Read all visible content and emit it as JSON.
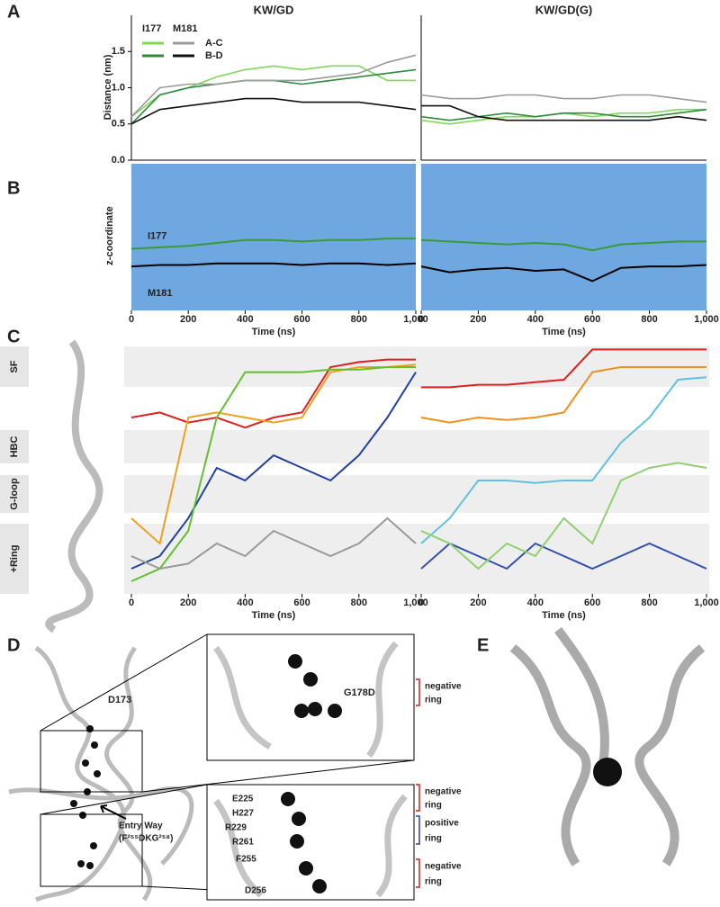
{
  "panels": {
    "A": {
      "label": "A",
      "legend": {
        "groups": [
          {
            "name": "I177",
            "colors": [
              "#7ed957",
              "#2e8b3a"
            ]
          },
          {
            "name": "M181",
            "colors": [
              "#9a9a9a",
              "#111111"
            ]
          }
        ],
        "rows": [
          "A-C",
          "B-D"
        ]
      },
      "charts": [
        {
          "type": "line",
          "title": "KW/GD",
          "title_color": "#7a55b5",
          "ylabel": "Distance (nm)",
          "x": [
            0,
            100,
            200,
            300,
            400,
            500,
            600,
            700,
            800,
            900,
            1000
          ],
          "xlim": [
            0,
            1000
          ],
          "ylim": [
            0,
            2
          ],
          "yticks": [
            {
              "value": 0,
              "label": "0.0"
            },
            0.5,
            {
              "value": 1,
              "label": "1.0"
            },
            1.5
          ],
          "series": [
            [
              [
                0.6,
                0.9,
                1.0,
                1.15,
                1.25,
                1.3,
                1.25,
                1.3,
                1.3,
                1.1,
                1.1
              ],
              [
                0.5,
                0.9,
                1.0,
                1.05,
                1.1,
                1.1,
                1.05,
                1.1,
                1.15,
                1.2,
                1.25
              ]
            ],
            [
              [
                0.6,
                1.0,
                1.05,
                1.05,
                1.1,
                1.1,
                1.1,
                1.15,
                1.2,
                1.35,
                1.45
              ],
              [
                0.5,
                0.7,
                0.75,
                0.8,
                0.85,
                0.85,
                0.8,
                0.8,
                0.8,
                0.75,
                0.7
              ]
            ]
          ]
        },
        {
          "type": "line",
          "title": "KW/GD(G)",
          "title_color": "#6cc04a",
          "x": [
            0,
            100,
            200,
            300,
            400,
            500,
            600,
            700,
            800,
            900,
            1000
          ],
          "xlim": [
            0,
            1000
          ],
          "ylim": [
            0,
            2
          ],
          "series": [
            [
              [
                0.55,
                0.5,
                0.55,
                0.6,
                0.6,
                0.65,
                0.6,
                0.65,
                0.65,
                0.7,
                0.7
              ],
              [
                0.6,
                0.55,
                0.6,
                0.65,
                0.6,
                0.65,
                0.65,
                0.6,
                0.6,
                0.65,
                0.7
              ]
            ],
            [
              [
                0.9,
                0.85,
                0.85,
                0.9,
                0.9,
                0.85,
                0.85,
                0.9,
                0.9,
                0.85,
                0.8
              ],
              [
                0.75,
                0.75,
                0.6,
                0.55,
                0.55,
                0.55,
                0.55,
                0.55,
                0.55,
                0.6,
                0.55
              ]
            ]
          ]
        }
      ]
    },
    "B": {
      "label": "B",
      "charts": [
        {
          "type": "line",
          "ylabel": "z-coordinate",
          "xlabel": "Time (ns)",
          "x": [
            0,
            100,
            200,
            300,
            400,
            500,
            600,
            700,
            800,
            900,
            1000
          ],
          "xlim": [
            0,
            1000
          ],
          "ylim": [
            0,
            1
          ],
          "xticks": [
            0,
            200,
            400,
            600,
            800,
            {
              "value": 1000,
              "label": "1,000"
            }
          ],
          "series": [
            {
              "name": "I177",
              "color": "#3a9a3a",
              "values": [
                0.42,
                0.43,
                0.44,
                0.46,
                0.48,
                0.48,
                0.47,
                0.48,
                0.48,
                0.49,
                0.49
              ]
            },
            {
              "name": "M181",
              "color": "#000000",
              "values": [
                0.3,
                0.31,
                0.31,
                0.32,
                0.32,
                0.32,
                0.31,
                0.32,
                0.32,
                0.31,
                0.32
              ]
            }
          ]
        },
        {
          "type": "line",
          "xlabel": "Time (ns)",
          "x": [
            0,
            100,
            200,
            300,
            400,
            500,
            600,
            700,
            800,
            900,
            1000
          ],
          "xlim": [
            0,
            1000
          ],
          "ylim": [
            0,
            1
          ],
          "xticks": [
            0,
            200,
            400,
            600,
            800,
            {
              "value": 1000,
              "label": "1,000"
            }
          ],
          "series": [
            {
              "color": "#3a9a3a",
              "values": [
                0.48,
                0.47,
                0.46,
                0.45,
                0.46,
                0.45,
                0.41,
                0.45,
                0.46,
                0.47,
                0.47
              ]
            },
            {
              "color": "#000000",
              "values": [
                0.3,
                0.26,
                0.28,
                0.29,
                0.27,
                0.28,
                0.2,
                0.29,
                0.3,
                0.3,
                0.31
              ]
            }
          ]
        }
      ]
    },
    "C": {
      "label": "C",
      "bands": [
        "SF",
        "HBC",
        "G-loop",
        "+Ring"
      ],
      "charts": [
        {
          "type": "line",
          "xlabel": "Time (ns)",
          "x": [
            0,
            100,
            200,
            300,
            400,
            500,
            600,
            700,
            800,
            900,
            1000
          ],
          "xlim": [
            0,
            1000
          ],
          "ylim": [
            0,
            1
          ],
          "xticks": [
            0,
            200,
            400,
            600,
            800,
            {
              "value": 1000,
              "label": "1,000"
            }
          ],
          "series": [
            {
              "color": "#e02020",
              "values": [
                0.7,
                0.72,
                0.68,
                0.7,
                0.66,
                0.7,
                0.72,
                0.9,
                0.92,
                0.93,
                0.93
              ]
            },
            {
              "color": "#f0a020",
              "values": [
                0.3,
                0.2,
                0.7,
                0.72,
                0.7,
                0.68,
                0.7,
                0.88,
                0.9,
                0.9,
                0.91
              ]
            },
            {
              "color": "#2040a0",
              "values": [
                0.1,
                0.15,
                0.3,
                0.5,
                0.45,
                0.55,
                0.5,
                0.45,
                0.55,
                0.7,
                0.88
              ]
            },
            {
              "color": "#60c030",
              "values": [
                0.05,
                0.1,
                0.25,
                0.7,
                0.88,
                0.88,
                0.88,
                0.89,
                0.89,
                0.9,
                0.9
              ]
            },
            {
              "color": "#999999",
              "values": [
                0.15,
                0.1,
                0.12,
                0.2,
                0.15,
                0.25,
                0.2,
                0.15,
                0.2,
                0.3,
                0.2
              ]
            }
          ]
        },
        {
          "type": "line",
          "xlabel": "Time (ns)",
          "x": [
            0,
            100,
            200,
            300,
            400,
            500,
            600,
            700,
            800,
            900,
            1000
          ],
          "xlim": [
            0,
            1000
          ],
          "ylim": [
            0,
            1
          ],
          "xticks": [
            0,
            200,
            400,
            600,
            800,
            {
              "value": 1000,
              "label": "1,000"
            }
          ],
          "series": [
            {
              "color": "#f09020",
              "values": [
                0.7,
                0.68,
                0.7,
                0.69,
                0.7,
                0.72,
                0.88,
                0.9,
                0.9,
                0.9,
                0.9
              ]
            },
            {
              "color": "#e02020",
              "values": [
                0.82,
                0.82,
                0.83,
                0.83,
                0.84,
                0.85,
                0.97,
                0.97,
                0.97,
                0.97,
                0.97
              ]
            },
            {
              "color": "#60c0e0",
              "values": [
                0.2,
                0.3,
                0.45,
                0.45,
                0.44,
                0.45,
                0.45,
                0.6,
                0.7,
                0.85,
                0.86
              ]
            },
            {
              "color": "#3050b0",
              "values": [
                0.1,
                0.2,
                0.15,
                0.1,
                0.2,
                0.15,
                0.1,
                0.15,
                0.2,
                0.15,
                0.1
              ]
            },
            {
              "color": "#90d070",
              "values": [
                0.25,
                0.2,
                0.1,
                0.2,
                0.15,
                0.3,
                0.2,
                0.45,
                0.5,
                0.52,
                0.5
              ]
            }
          ]
        }
      ]
    },
    "D": {
      "label": "D",
      "site_top": "D173",
      "inset_top_label": "G178D",
      "residues": [
        {
          "name": "E225",
          "color": "#d02020"
        },
        {
          "name": "H227",
          "color": "#3040a0"
        },
        {
          "name": "R229",
          "color": "#3040a0"
        },
        {
          "name": "R261",
          "color": "#3040a0"
        },
        {
          "name": "F255",
          "color": "#e0c020"
        },
        {
          "name": "D256",
          "color": "#d02020"
        }
      ],
      "entry": [
        "Entry Way",
        "(F²⁵⁵DKG²⁵⁸)"
      ],
      "rings": [
        {
          "lines": [
            "negative",
            "ring"
          ],
          "color": "#d02020"
        },
        {
          "lines": [
            "negative",
            "ring"
          ],
          "color": "#d02020"
        },
        {
          "lines": [
            "positive",
            "ring"
          ],
          "color": "#3040a0"
        },
        {
          "lines": [
            "negative",
            "ring"
          ],
          "color": "#d02020"
        }
      ]
    },
    "E": {
      "label": "E"
    }
  }
}
